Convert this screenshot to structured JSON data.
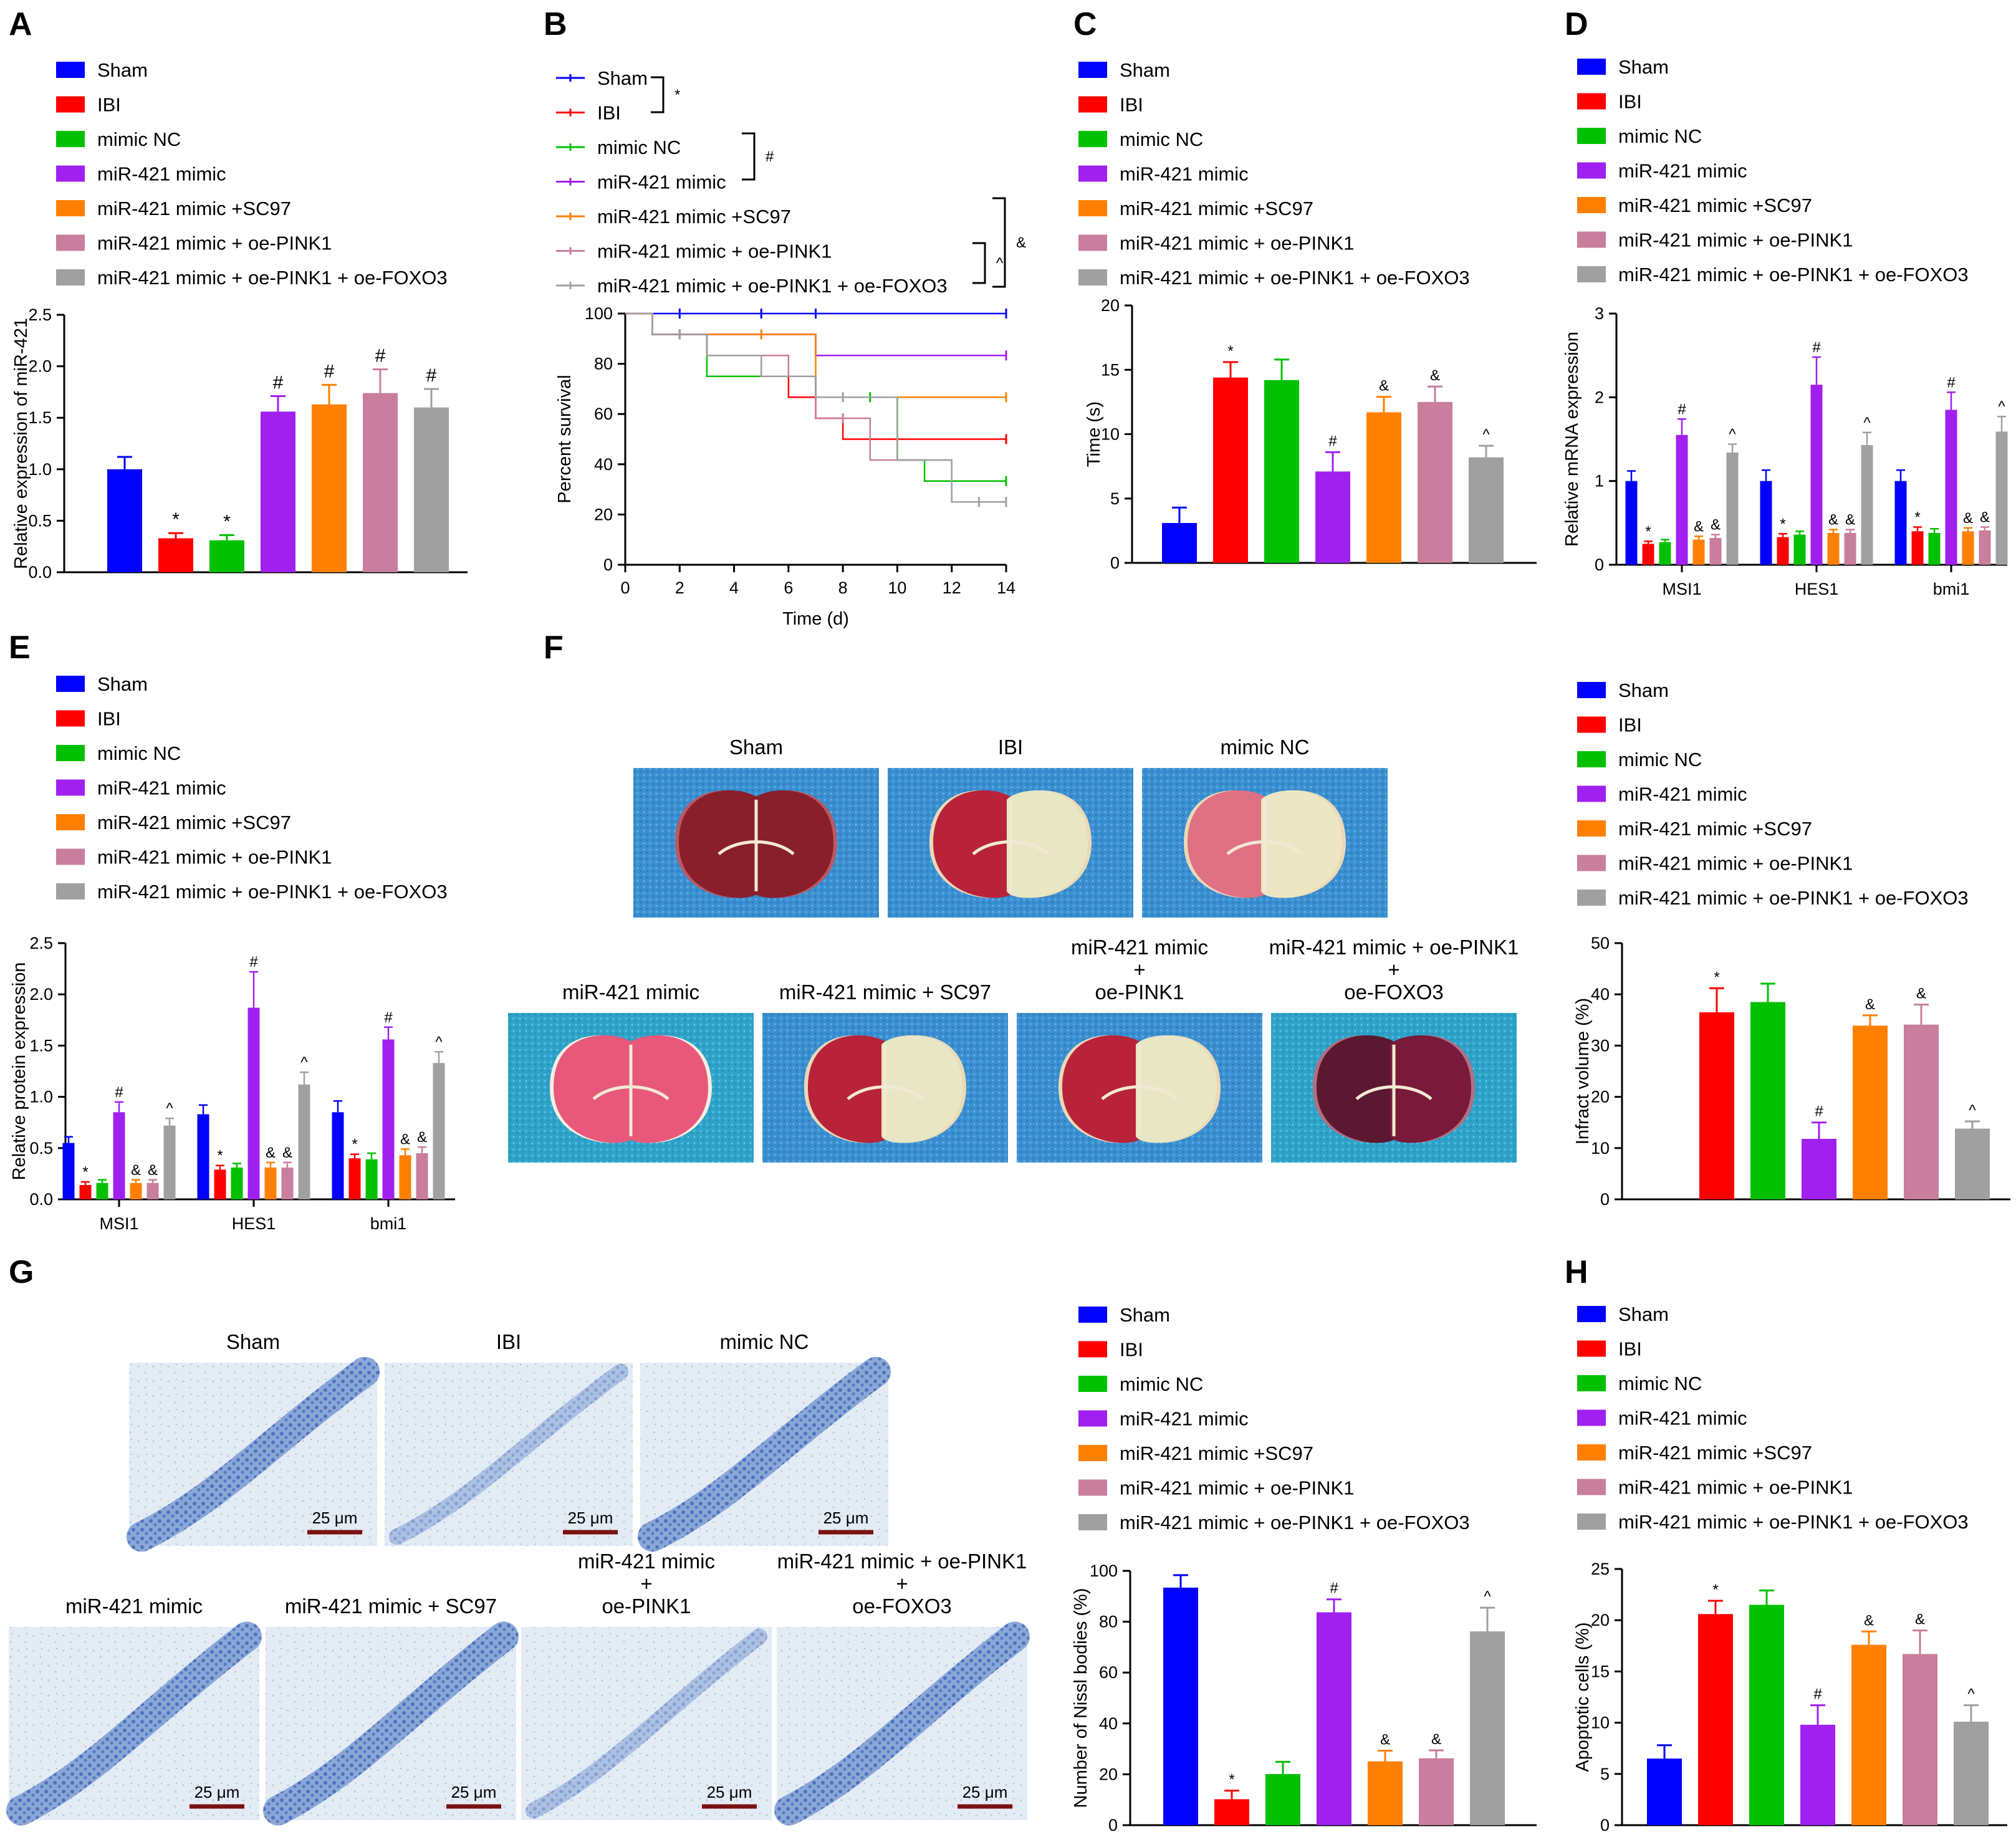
{
  "colors": {
    "Sham": "#0000ff",
    "IBI": "#ff0000",
    "mimic NC": "#00c000",
    "miR-421 mimic": "#a020f0",
    "miR-421 mimic +SC97": "#ff8000",
    "miR-421 mimic + oe-PINK1": "#c87e9c",
    "miR-421 mimic + oe-PINK1 + oe-FOXO3": "#a0a0a0"
  },
  "panel_labels": [
    "A",
    "B",
    "C",
    "D",
    "E",
    "F",
    "G",
    "H"
  ],
  "legend_groups": [
    "Sham",
    "IBI",
    "mimic NC",
    "miR-421 mimic",
    "miR-421 mimic +SC97",
    "miR-421 mimic + oe-PINK1",
    "miR-421 mimic + oe-PINK1 + oe-FOXO3"
  ],
  "chart_data": [
    {
      "panel": "A",
      "type": "bar",
      "ylabel": "Relative expression of miR-421",
      "ylim": [
        0,
        2.5
      ],
      "yticks": [
        "0.0",
        "0.5",
        "1.0",
        "1.5",
        "2.0",
        "2.5"
      ],
      "categories": [
        "Sham",
        "IBI",
        "mimic NC",
        "miR-421 mimic",
        "miR-421 mimic +SC97",
        "miR-421 mimic + oe-PINK1",
        "miR-421 mimic + oe-PINK1 + oe-FOXO3"
      ],
      "values": [
        1.0,
        0.33,
        0.31,
        1.56,
        1.63,
        1.74,
        1.6
      ],
      "errors": [
        0.12,
        0.05,
        0.05,
        0.15,
        0.19,
        0.23,
        0.18
      ],
      "marks": [
        "",
        "*",
        "*",
        "#",
        "#",
        "#",
        "#"
      ]
    },
    {
      "panel": "B",
      "type": "line",
      "xlabel": "Time (d)",
      "ylabel": "Percent survival",
      "xlim": [
        0,
        14
      ],
      "ylim": [
        0,
        100
      ],
      "xticks": [
        "0",
        "2",
        "4",
        "6",
        "8",
        "10",
        "12",
        "14"
      ],
      "yticks": [
        "0",
        "20",
        "40",
        "60",
        "80",
        "100"
      ],
      "brackets": [
        {
          "symbol": "*"
        },
        {
          "symbol": "#"
        },
        {
          "symbol": "&"
        },
        {
          "symbol": "^"
        }
      ],
      "series": [
        {
          "name": "Sham",
          "x": [
            0,
            14
          ],
          "y": [
            100,
            100
          ],
          "censor": [
            2,
            5,
            7,
            14
          ]
        },
        {
          "name": "IBI",
          "x": [
            1,
            3,
            5,
            6,
            7,
            8,
            14
          ],
          "y": [
            91.7,
            83.3,
            75,
            66.7,
            58.3,
            50,
            50
          ],
          "censor": [
            14
          ]
        },
        {
          "name": "mimic NC",
          "x": [
            1,
            3,
            7,
            10,
            11,
            14
          ],
          "y": [
            91.7,
            75,
            66.7,
            41.7,
            33.3,
            33.3
          ],
          "censor": [
            2,
            9,
            14
          ]
        },
        {
          "name": "miR-421 mimic",
          "x": [
            1,
            7,
            14
          ],
          "y": [
            91.7,
            83.3,
            83.3
          ],
          "censor": [
            2,
            14
          ]
        },
        {
          "name": "miR-421 mimic +SC97",
          "x": [
            1,
            7,
            14
          ],
          "y": [
            91.7,
            66.7,
            66.7
          ],
          "censor": [
            2,
            5,
            14
          ]
        },
        {
          "name": "miR-421 mimic + oe-PINK1",
          "x": [
            1,
            3,
            6,
            7,
            9,
            12,
            14
          ],
          "y": [
            91.7,
            83.3,
            75,
            58.3,
            41.7,
            25,
            25
          ],
          "censor": [
            2,
            8,
            14
          ]
        },
        {
          "name": "miR-421 mimic + oe-PINK1 + oe-FOXO3",
          "x": [
            1,
            3,
            5,
            7,
            10,
            12,
            14
          ],
          "y": [
            91.7,
            83.3,
            75,
            66.7,
            41.7,
            25,
            25
          ],
          "censor": [
            2,
            8,
            13,
            14
          ]
        }
      ]
    },
    {
      "panel": "C",
      "type": "bar",
      "ylabel": "Time (s)",
      "ylim": [
        0,
        20
      ],
      "yticks": [
        "0",
        "5",
        "10",
        "15",
        "20"
      ],
      "categories": [
        "Sham",
        "IBI",
        "mimic NC",
        "miR-421 mimic",
        "miR-421 mimic +SC97",
        "miR-421 mimic + oe-PINK1",
        "miR-421 mimic + oe-PINK1 + oe-FOXO3"
      ],
      "values": [
        3.1,
        14.4,
        14.2,
        7.1,
        11.7,
        12.5,
        8.2
      ],
      "errors": [
        1.2,
        1.2,
        1.6,
        1.5,
        1.2,
        1.2,
        0.9
      ],
      "marks": [
        "",
        "*",
        "",
        "#",
        "&",
        "&",
        "^"
      ]
    },
    {
      "panel": "D",
      "type": "bar",
      "ylabel": "Relative mRNA expression",
      "ylim": [
        0,
        3
      ],
      "yticks": [
        "0",
        "1",
        "2",
        "3"
      ],
      "groups": [
        "MSI1",
        "HES1",
        "bmi1"
      ],
      "series": [
        {
          "name": "Sham",
          "values": [
            1.0,
            1.0,
            1.0
          ],
          "errors": [
            0.12,
            0.13,
            0.13
          ]
        },
        {
          "name": "IBI",
          "values": [
            0.25,
            0.33,
            0.4
          ],
          "errors": [
            0.03,
            0.04,
            0.05
          ]
        },
        {
          "name": "mimic NC",
          "values": [
            0.27,
            0.36,
            0.38
          ],
          "errors": [
            0.03,
            0.04,
            0.05
          ]
        },
        {
          "name": "miR-421 mimic",
          "values": [
            1.55,
            2.15,
            1.85
          ],
          "errors": [
            0.19,
            0.33,
            0.21
          ]
        },
        {
          "name": "miR-421 mimic +SC97",
          "values": [
            0.3,
            0.38,
            0.4
          ],
          "errors": [
            0.04,
            0.04,
            0.04
          ]
        },
        {
          "name": "miR-421 mimic + oe-PINK1",
          "values": [
            0.32,
            0.38,
            0.41
          ],
          "errors": [
            0.04,
            0.04,
            0.04
          ]
        },
        {
          "name": "miR-421 mimic + oe-PINK1 + oe-FOXO3",
          "values": [
            1.34,
            1.43,
            1.59
          ],
          "errors": [
            0.1,
            0.15,
            0.18
          ]
        }
      ],
      "marks": [
        "",
        "*",
        "",
        "#",
        "&",
        "&",
        "^"
      ]
    },
    {
      "panel": "E",
      "type": "bar",
      "ylabel": "Relative protein expression",
      "ylim": [
        0,
        2.5
      ],
      "yticks": [
        "0.0",
        "0.5",
        "1.0",
        "1.5",
        "2.0",
        "2.5"
      ],
      "groups": [
        "MSI1",
        "HES1",
        "bmi1"
      ],
      "series": [
        {
          "name": "Sham",
          "values": [
            0.55,
            0.83,
            0.85
          ],
          "errors": [
            0.06,
            0.09,
            0.11
          ]
        },
        {
          "name": "IBI",
          "values": [
            0.14,
            0.29,
            0.4
          ],
          "errors": [
            0.03,
            0.04,
            0.04
          ]
        },
        {
          "name": "mimic NC",
          "values": [
            0.16,
            0.31,
            0.39
          ],
          "errors": [
            0.03,
            0.04,
            0.06
          ]
        },
        {
          "name": "miR-421 mimic",
          "values": [
            0.85,
            1.87,
            1.56
          ],
          "errors": [
            0.1,
            0.35,
            0.12
          ]
        },
        {
          "name": "miR-421 mimic +SC97",
          "values": [
            0.16,
            0.31,
            0.43
          ],
          "errors": [
            0.03,
            0.05,
            0.06
          ]
        },
        {
          "name": "miR-421 mimic + oe-PINK1",
          "values": [
            0.16,
            0.31,
            0.45
          ],
          "errors": [
            0.03,
            0.05,
            0.06
          ]
        },
        {
          "name": "miR-421 mimic + oe-PINK1 + oe-FOXO3",
          "values": [
            0.72,
            1.12,
            1.33
          ],
          "errors": [
            0.07,
            0.12,
            0.11
          ]
        }
      ],
      "marks": [
        "",
        "*",
        "",
        "#",
        "&",
        "&",
        "^"
      ]
    },
    {
      "panel": "F",
      "type": "bar",
      "ylabel": "Infract volume (%)",
      "ylim": [
        0,
        50
      ],
      "yticks": [
        "0",
        "10",
        "20",
        "30",
        "40",
        "50"
      ],
      "categories": [
        "Sham",
        "IBI",
        "mimic NC",
        "miR-421 mimic",
        "miR-421 mimic +SC97",
        "miR-421 mimic + oe-PINK1",
        "miR-421 mimic + oe-PINK1 + oe-FOXO3"
      ],
      "values": [
        0,
        36.5,
        38.5,
        11.8,
        33.9,
        34.1,
        13.8
      ],
      "errors": [
        0,
        4.7,
        3.6,
        3.2,
        2.0,
        3.9,
        1.4
      ],
      "marks": [
        "",
        "*",
        "",
        "#",
        "&",
        "&",
        "^"
      ]
    },
    {
      "panel": "G",
      "type": "bar",
      "ylabel": "Number of Nissl bodies (%)",
      "ylim": [
        0,
        100
      ],
      "yticks": [
        "0",
        "20",
        "40",
        "60",
        "80",
        "100"
      ],
      "categories": [
        "Sham",
        "IBI",
        "mimic NC",
        "miR-421 mimic",
        "miR-421 mimic +SC97",
        "miR-421 mimic + oe-PINK1",
        "miR-421 mimic + oe-PINK1 + oe-FOXO3"
      ],
      "values": [
        93.4,
        10.2,
        20.1,
        83.7,
        25.1,
        26.3,
        76.2
      ],
      "errors": [
        4.9,
        3.4,
        4.8,
        5.1,
        4.2,
        3.1,
        9.3
      ],
      "marks": [
        "",
        "*",
        "",
        "#",
        "&",
        "&",
        "^"
      ]
    },
    {
      "panel": "H",
      "type": "bar",
      "ylabel": "Apoptotic cells (%)",
      "ylim": [
        0,
        25
      ],
      "yticks": [
        "0",
        "5",
        "10",
        "15",
        "20",
        "25"
      ],
      "categories": [
        "Sham",
        "IBI",
        "mimic NC",
        "miR-421 mimic",
        "miR-421 mimic +SC97",
        "miR-421 mimic + oe-PINK1",
        "miR-421 mimic + oe-PINK1 + oe-FOXO3"
      ],
      "values": [
        6.5,
        20.6,
        21.5,
        9.8,
        17.6,
        16.7,
        10.1
      ],
      "errors": [
        1.3,
        1.3,
        1.4,
        1.9,
        1.3,
        2.3,
        1.6
      ],
      "marks": [
        "",
        "*",
        "",
        "#",
        "&",
        "&",
        "^"
      ]
    }
  ],
  "images": {
    "ttc_labels": [
      "Sham",
      "IBI",
      "mimic NC",
      "miR-421 mimic",
      "miR-421 mimic + SC97",
      "miR-421 mimic\n+\noe-PINK1",
      "miR-421 mimic + oe-PINK1\n+\noe-FOXO3"
    ],
    "nissl_labels": [
      "Sham",
      "IBI",
      "mimic NC",
      "miR-421 mimic",
      "miR-421 mimic + SC97",
      "miR-421 mimic\n+\noe-PINK1",
      "miR-421 mimic + oe-PINK1\n+\noe-FOXO3"
    ],
    "scale_bar": "25 μm"
  }
}
